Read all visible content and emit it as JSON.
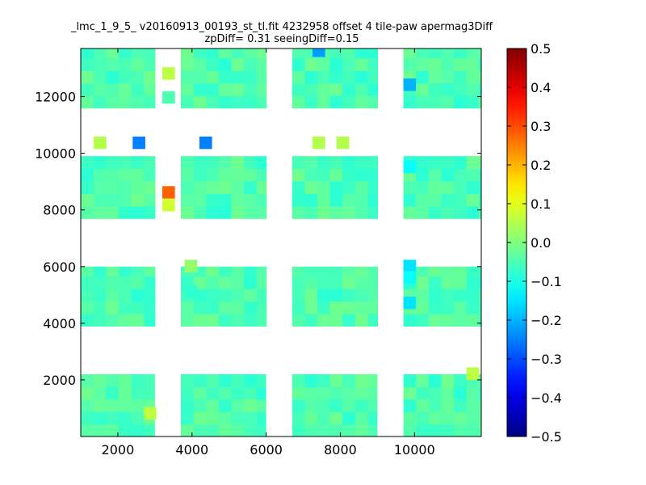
{
  "chart_data": {
    "type": "heatmap",
    "title_lines": [
      "_lmc_1_9_5_ v20160913_00193_st_tl.fit 4232958 offset 4 tile-paw apermag3Diff",
      "zpDiff= 0.31 seeingDiff=0.15"
    ],
    "xlim": [
      1000,
      11800
    ],
    "ylim": [
      0,
      13700
    ],
    "x_ticks": [
      2000,
      4000,
      6000,
      8000,
      10000
    ],
    "y_ticks": [
      2000,
      4000,
      6000,
      8000,
      10000,
      12000
    ],
    "colorbar": {
      "range": [
        -0.5,
        0.5
      ],
      "ticks": [
        "0.5",
        "0.4",
        "0.3",
        "0.2",
        "0.1",
        "0.0",
        "−0.1",
        "−0.2",
        "−0.3",
        "−0.4",
        "−0.5"
      ],
      "colormap": "jet"
    },
    "cell_size": [
      340,
      440
    ],
    "background_value": -0.05,
    "detector_blocks": [
      {
        "x": [
          1000,
          3000
        ],
        "y": [
          0,
          2200
        ]
      },
      {
        "x": [
          3700,
          6000
        ],
        "y": [
          0,
          2200
        ]
      },
      {
        "x": [
          6700,
          9000
        ],
        "y": [
          0,
          2200
        ]
      },
      {
        "x": [
          9700,
          11800
        ],
        "y": [
          0,
          2200
        ]
      },
      {
        "x": [
          1000,
          3000
        ],
        "y": [
          3900,
          6000
        ]
      },
      {
        "x": [
          3700,
          6000
        ],
        "y": [
          3900,
          6000
        ]
      },
      {
        "x": [
          6700,
          9000
        ],
        "y": [
          3900,
          6000
        ]
      },
      {
        "x": [
          9700,
          11800
        ],
        "y": [
          3900,
          6000
        ]
      },
      {
        "x": [
          1000,
          3000
        ],
        "y": [
          7700,
          9900
        ]
      },
      {
        "x": [
          3700,
          6000
        ],
        "y": [
          7700,
          9900
        ]
      },
      {
        "x": [
          6700,
          9000
        ],
        "y": [
          7700,
          9900
        ]
      },
      {
        "x": [
          9700,
          11800
        ],
        "y": [
          7700,
          9900
        ]
      },
      {
        "x": [
          1000,
          3000
        ],
        "y": [
          11600,
          13700
        ]
      },
      {
        "x": [
          3700,
          6000
        ],
        "y": [
          11600,
          13700
        ]
      },
      {
        "x": [
          6700,
          9000
        ],
        "y": [
          11600,
          13700
        ]
      },
      {
        "x": [
          9700,
          11800
        ],
        "y": [
          11600,
          13700
        ]
      }
    ],
    "removed_cells": [
      {
        "x": [
          3000,
          3700
        ],
        "y": [
          0,
          2200
        ]
      },
      {
        "x": [
          6000,
          6700
        ],
        "y": [
          0,
          2200
        ]
      },
      {
        "x": [
          9000,
          9700
        ],
        "y": [
          0,
          2200
        ]
      }
    ],
    "special_cells": [
      {
        "x": 1350,
        "y": 10150,
        "v": 0.05
      },
      {
        "x": 2400,
        "y": 10150,
        "v": -0.25
      },
      {
        "x": 4200,
        "y": 10150,
        "v": -0.25
      },
      {
        "x": 7250,
        "y": 10150,
        "v": 0.05
      },
      {
        "x": 7900,
        "y": 10150,
        "v": 0.05
      },
      {
        "x": 3200,
        "y": 12600,
        "v": 0.06
      },
      {
        "x": 3200,
        "y": 11750,
        "v": -0.05
      },
      {
        "x": 7250,
        "y": 13400,
        "v": -0.22
      },
      {
        "x": 9700,
        "y": 12200,
        "v": -0.2
      },
      {
        "x": 9700,
        "y": 9300,
        "v": -0.12
      },
      {
        "x": 3200,
        "y": 8400,
        "v": 0.28
      },
      {
        "x": 3200,
        "y": 7950,
        "v": 0.08
      },
      {
        "x": 3800,
        "y": 5800,
        "v": 0.02
      },
      {
        "x": 3800,
        "y": 4900,
        "v": -0.08
      },
      {
        "x": 9700,
        "y": 5800,
        "v": -0.15
      },
      {
        "x": 9700,
        "y": 5400,
        "v": -0.12
      },
      {
        "x": 9700,
        "y": 4500,
        "v": -0.15
      },
      {
        "x": 2700,
        "y": 600,
        "v": 0.06
      },
      {
        "x": 11400,
        "y": 2000,
        "v": 0.06
      }
    ]
  }
}
